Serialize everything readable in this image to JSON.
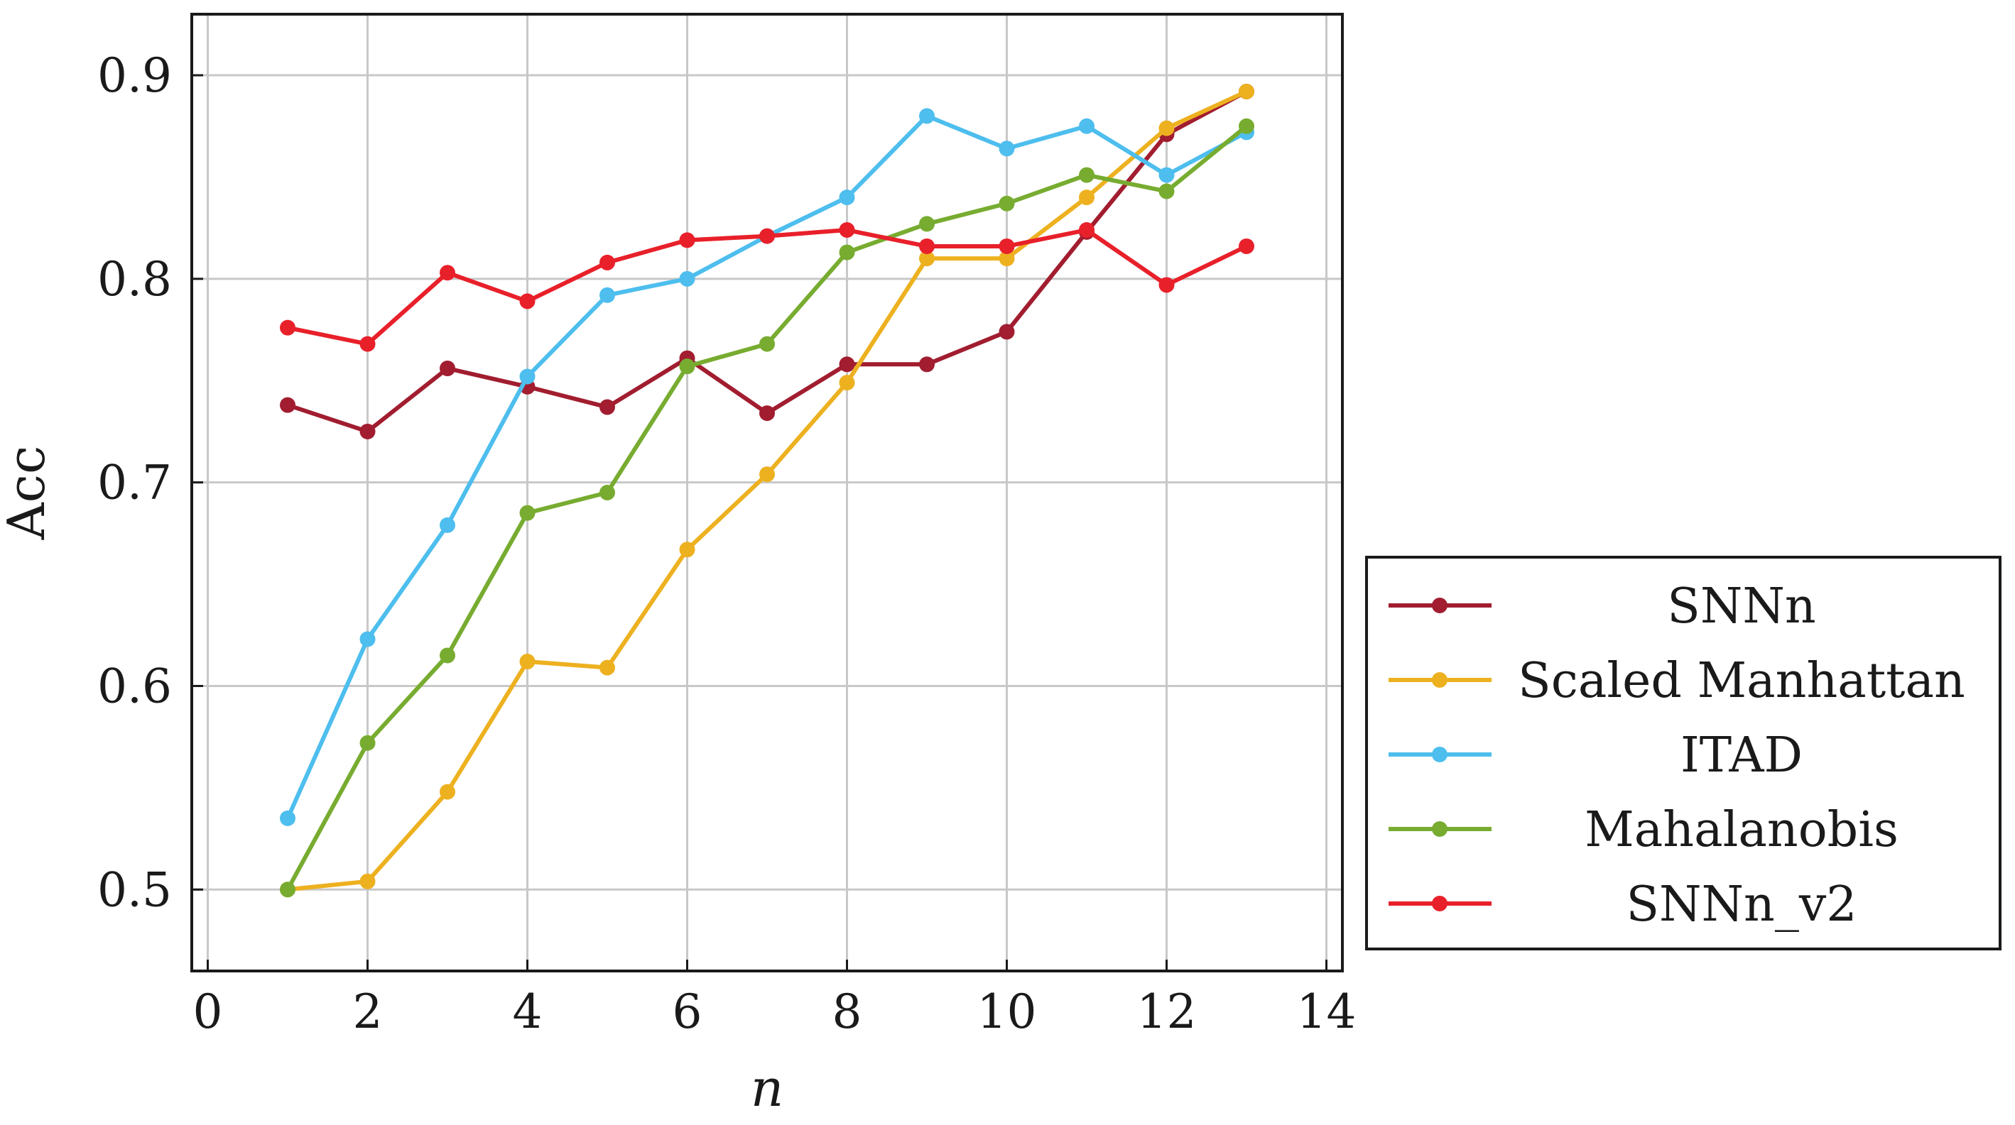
{
  "chart_data": {
    "type": "line",
    "title": "",
    "xlabel": "n",
    "ylabel": "Acc",
    "xlim": [
      -0.2,
      14.2
    ],
    "ylim": [
      0.46,
      0.93
    ],
    "xticks": [
      0,
      2,
      4,
      6,
      8,
      10,
      12,
      14
    ],
    "yticks": [
      0.5,
      0.6,
      0.7,
      0.8,
      0.9
    ],
    "xtick_labels": [
      "0",
      "2",
      "4",
      "6",
      "8",
      "10",
      "12",
      "14"
    ],
    "ytick_labels": [
      "0.5",
      "0.6",
      "0.7",
      "0.8",
      "0.9"
    ],
    "grid": true,
    "legend_position": "outside-right",
    "x": [
      1,
      2,
      3,
      4,
      5,
      6,
      7,
      8,
      9,
      10,
      11,
      12,
      13
    ],
    "series": [
      {
        "name": "SNNn",
        "color": "#a11d2f",
        "values": [
          0.738,
          0.725,
          0.756,
          0.747,
          0.737,
          0.761,
          0.734,
          0.758,
          0.758,
          0.774,
          0.823,
          0.871,
          0.892
        ]
      },
      {
        "name": "Scaled Manhattan",
        "color": "#edb120",
        "values": [
          0.5,
          0.504,
          0.548,
          0.612,
          0.609,
          0.667,
          0.704,
          0.749,
          0.81,
          0.81,
          0.84,
          0.874,
          0.892
        ]
      },
      {
        "name": "ITAD",
        "color": "#4dbeee",
        "values": [
          0.535,
          0.623,
          0.679,
          0.752,
          0.792,
          0.8,
          0.821,
          0.84,
          0.88,
          0.864,
          0.875,
          0.851,
          0.872
        ]
      },
      {
        "name": "Mahalanobis",
        "color": "#77ac30",
        "values": [
          0.5,
          0.572,
          0.615,
          0.685,
          0.695,
          0.757,
          0.768,
          0.813,
          0.827,
          0.837,
          0.851,
          0.843,
          0.875
        ]
      },
      {
        "name": "SNNn_v2",
        "color": "#e8202a",
        "values": [
          0.776,
          0.768,
          0.803,
          0.789,
          0.808,
          0.819,
          0.821,
          0.824,
          0.816,
          0.816,
          0.824,
          0.797,
          0.816
        ]
      }
    ]
  }
}
